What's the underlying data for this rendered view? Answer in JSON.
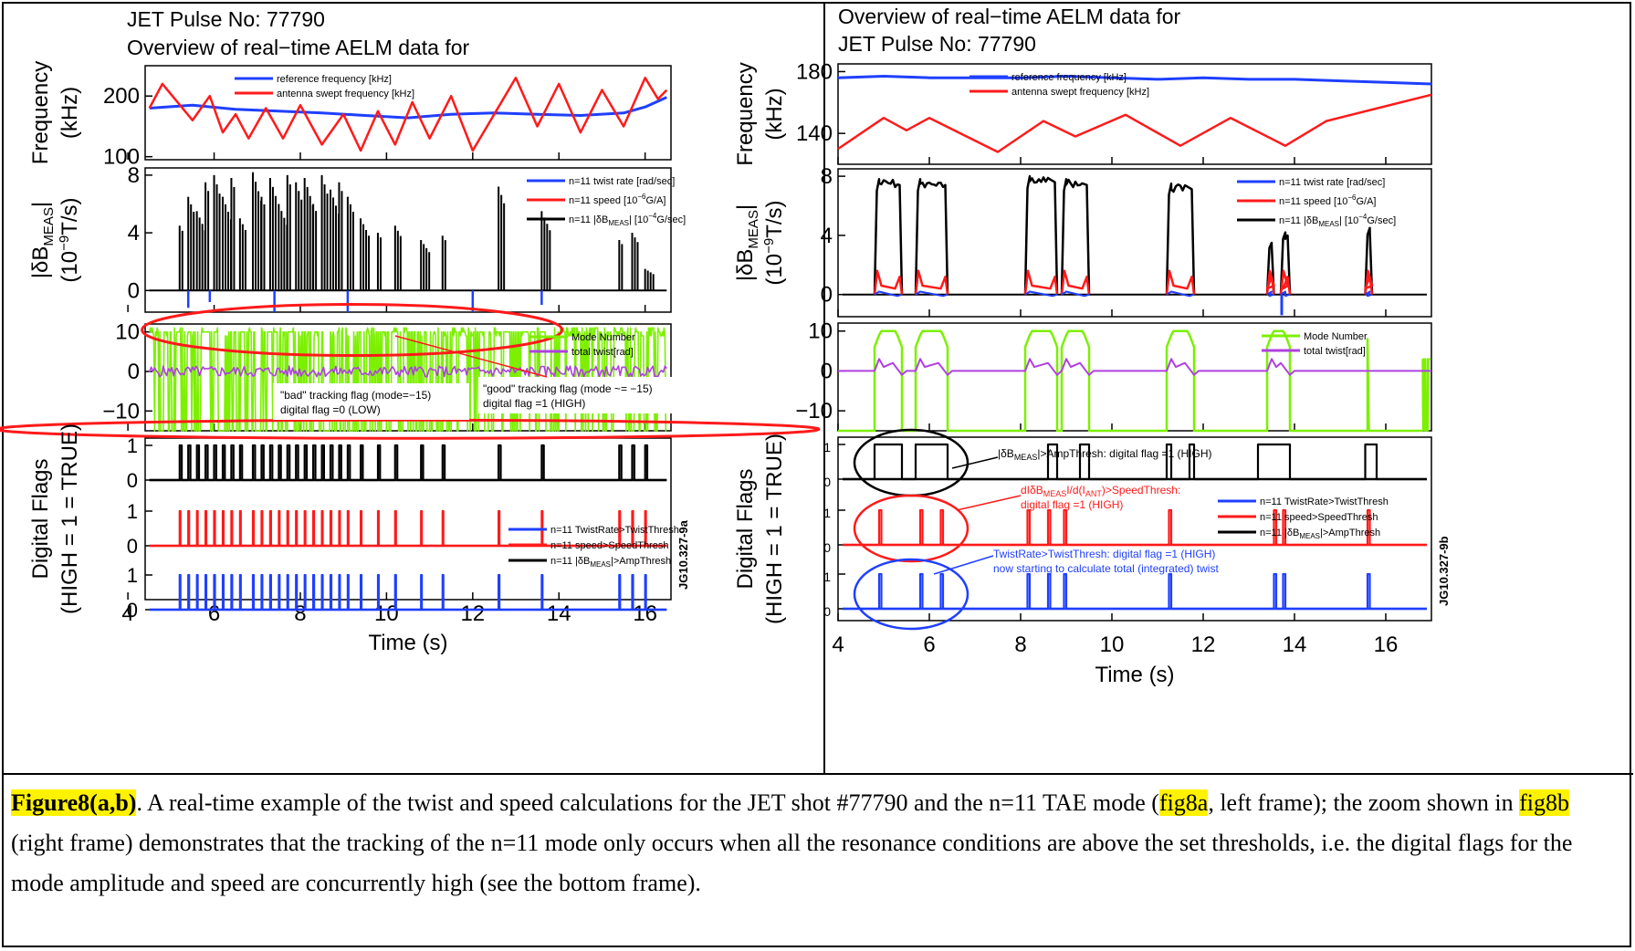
{
  "panels": [
    {
      "id": "8a",
      "title_lines": [
        "JET Pulse No: 77790",
        "Overview of real−time AELM data for"
      ],
      "side_id": "JG10.327-9a",
      "x_label": "Time (s)",
      "x_ticks": [
        4,
        6,
        8,
        10,
        12,
        14,
        16
      ],
      "subplots": {
        "frequency": {
          "ylabel_lines": [
            "Frequency",
            "(kHz)"
          ],
          "y_ticks": [
            100,
            200
          ],
          "legend": [
            "reference frequency [kHz]",
            "antenna swept frequency [kHz]"
          ]
        },
        "dbmeas": {
          "ylabel_lines": [
            "|δB",
            "MEAS",
            "|",
            "(10",
            "−9",
            "T/s)"
          ],
          "y_ticks": [
            0,
            4,
            8
          ],
          "legend": [
            "n=11 twist rate [rad/sec]",
            "n=11 speed [10",
            "−6",
            "G/A]",
            "n=11 |δB",
            "MEAS",
            "| [10",
            "−4",
            "G/sec]"
          ]
        },
        "mode": {
          "y_ticks": [
            -10,
            0,
            10
          ],
          "legend": [
            "Mode Number",
            "total twist[rad]"
          ],
          "annotations": [
            {
              "lines": [
                "\"bad\" tracking flag (mode=−15)",
                "digital flag =0 (LOW)"
              ]
            },
            {
              "lines": [
                "\"good\" tracking flag (mode ~= −15)",
                "digital flag =1 (HIGH)"
              ]
            }
          ]
        },
        "flags": {
          "ylabel_lines": [
            "Digital Flags",
            "(HIGH = 1 = TRUE)"
          ],
          "y_ticks": [
            0,
            1
          ],
          "legend": [
            "n=11 TwistRate>TwistThresh",
            "n=11 speed>SpeedThresh",
            "n=11 |δB",
            "MEAS",
            "|>AmpThresh"
          ]
        }
      }
    },
    {
      "id": "8b",
      "title_lines": [
        "Overview of real−time AELM data for",
        "JET Pulse No: 77790"
      ],
      "side_id": "JG10.327-9b",
      "x_label": "Time (s)",
      "x_ticks": [
        4,
        6,
        8,
        10,
        12,
        14,
        16
      ],
      "subplots": {
        "frequency": {
          "ylabel_lines": [
            "Frequency",
            "(kHz)"
          ],
          "y_ticks": [
            140,
            180
          ],
          "legend": [
            "reference frequency [kHz]",
            "antenna swept frequency [kHz]"
          ]
        },
        "dbmeas": {
          "ylabel_lines": [
            "|δB",
            "MEAS",
            "|",
            "(10",
            "−9",
            "T/s)"
          ],
          "y_ticks": [
            0,
            4,
            8
          ],
          "legend": [
            "n=11 twist rate [rad/sec]",
            "n=11 speed [10",
            "−6",
            "G/A]",
            "n=11 |δB",
            "MEAS",
            "| [10",
            "−4",
            "G/sec]"
          ]
        },
        "mode": {
          "y_ticks": [
            -10,
            0,
            10
          ],
          "legend": [
            "Mode Number",
            "total twist[rad]"
          ]
        },
        "flags": {
          "ylabel_lines": [
            "Digital Flags",
            "(HIGH = 1 = TRUE)"
          ],
          "y_ticks": [
            0,
            1
          ],
          "legend": [
            "n=11 TwistRate>TwistThresh",
            "n=11 speed>SpeedThresh",
            "n=11 |δB",
            "MEAS",
            "|>AmpThresh"
          ],
          "annotations": [
            {
              "lines": [
                "|δB",
                "MEAS",
                "|>AmpThresh: digital flag =1 (HIGH)"
              ]
            },
            {
              "lines": [
                "dIδB",
                "MEAS",
                "I/d(I",
                "ANT",
                ")>SpeedThresh:",
                "digital flag =1 (HIGH)"
              ]
            },
            {
              "lines": [
                "TwistRate>TwistThresh: digital flag =1 (HIGH)",
                "now starting to calculate total (integrated) twist"
              ]
            }
          ]
        }
      }
    }
  ],
  "caption": {
    "label": "Figure8(a,b)",
    "part1": ". A real-time example of the twist and speed calculations for the JET shot #77790 and the n=11 TAE mode (",
    "ref_a": "fig8a",
    "part2": ", left frame); the zoom shown in ",
    "ref_b": "fig8b",
    "part3": " (right frame) demonstrates that the tracking of the n=11 mode only occurs when all the resonance conditions are above the set thresholds, i.e. the digital flags for the mode amplitude and speed are concurrently high (see the bottom frame)."
  },
  "colors": {
    "blue": "#1f3fff",
    "red": "#ff1a1a",
    "green": "#7cf000",
    "purple": "#b040e0",
    "black": "#000000",
    "highlight": "#fff200"
  },
  "chart_data": [
    {
      "type": "line",
      "panel": "8a",
      "x_range": [
        4.4,
        16.6
      ],
      "frequency": {
        "ylim": [
          95,
          250
        ],
        "series": [
          {
            "name": "reference frequency [kHz]",
            "color": "blue",
            "x": [
              4.5,
              5.5,
              6.5,
              7.5,
              8.5,
              9.5,
              10.5,
              11.5,
              12.5,
              13.5,
              14.5,
              15.5,
              16.0,
              16.5
            ],
            "y": [
              180,
              185,
              178,
              175,
              172,
              168,
              164,
              170,
              172,
              170,
              168,
              172,
              182,
              198
            ]
          },
          {
            "name": "antenna swept frequency [kHz]",
            "color": "red",
            "x": [
              4.5,
              4.8,
              5.5,
              5.9,
              6.2,
              6.5,
              6.8,
              7.2,
              7.6,
              8.0,
              8.5,
              9.0,
              9.4,
              9.8,
              10.2,
              10.6,
              11.0,
              11.5,
              12.0,
              12.5,
              13.0,
              13.5,
              14.0,
              14.5,
              15.0,
              15.5,
              16.0,
              16.3,
              16.5
            ],
            "y": [
              180,
              220,
              160,
              200,
              140,
              170,
              130,
              180,
              130,
              185,
              120,
              170,
              110,
              175,
              120,
              190,
              130,
              200,
              110,
              170,
              230,
              150,
              220,
              140,
              210,
              150,
              230,
              195,
              210
            ]
          }
        ]
      },
      "dbmeas": {
        "ylim": [
          -1.5,
          8.5
        ],
        "spikes_black_x": [
          5.2,
          5.4,
          5.6,
          5.8,
          6.0,
          6.2,
          6.4,
          6.6,
          6.9,
          7.1,
          7.3,
          7.5,
          7.7,
          7.9,
          8.1,
          8.3,
          8.5,
          8.7,
          8.9,
          9.1,
          9.4,
          9.8,
          10.2,
          10.8,
          11.3,
          12.6,
          13.6,
          15.4,
          15.7,
          16.0
        ],
        "spikes_black_y": [
          4.5,
          6.5,
          5.5,
          7.5,
          8.0,
          6.5,
          7.8,
          5.0,
          8.2,
          6.5,
          7.8,
          6.0,
          8.0,
          7.5,
          7.8,
          6.0,
          8.0,
          7.0,
          7.5,
          6.5,
          5.0,
          4.0,
          4.5,
          3.5,
          3.8,
          7.2,
          5.5,
          3.5,
          4.0,
          1.5
        ],
        "spikes_blue_x": [
          5.4,
          5.9,
          7.4,
          9.1,
          12.0,
          13.6
        ],
        "spikes_blue_y": [
          -1.2,
          -0.8,
          -1.5,
          -1.5,
          -1.5,
          -1.0
        ]
      },
      "mode": {
        "ylim": [
          -15,
          12
        ]
      },
      "flags": {
        "ylim": [
          -0.2,
          1.2
        ]
      }
    },
    {
      "type": "line",
      "panel": "8b",
      "x_range": [
        4.0,
        17.0
      ],
      "frequency": {
        "ylim": [
          120,
          185
        ],
        "series": [
          {
            "name": "reference frequency [kHz]",
            "color": "blue",
            "x": [
              4.0,
              5.0,
              6.0,
              7.0,
              8.0,
              9.0,
              10.0,
              11.0,
              12.0,
              13.0,
              14.0,
              15.0,
              16.0,
              17.0
            ],
            "y": [
              176,
              177,
              176,
              176,
              176,
              177,
              176,
              175,
              176,
              175,
              175,
              174,
              173,
              172
            ]
          },
          {
            "name": "antenna swept frequency [kHz]",
            "color": "red",
            "x": [
              4.0,
              5.0,
              5.5,
              6.0,
              7.5,
              8.5,
              9.2,
              10.3,
              11.5,
              12.6,
              13.8,
              14.7,
              17.0
            ],
            "y": [
              130,
              150,
              142,
              150,
              128,
              148,
              138,
              152,
              132,
              150,
              132,
              148,
              165
            ]
          }
        ]
      },
      "dbmeas": {
        "ylim": [
          -1.5,
          8.5
        ]
      },
      "mode": {
        "ylim": [
          -15,
          12
        ]
      },
      "flags": {
        "ylim": [
          -0.2,
          1.2
        ]
      }
    }
  ]
}
